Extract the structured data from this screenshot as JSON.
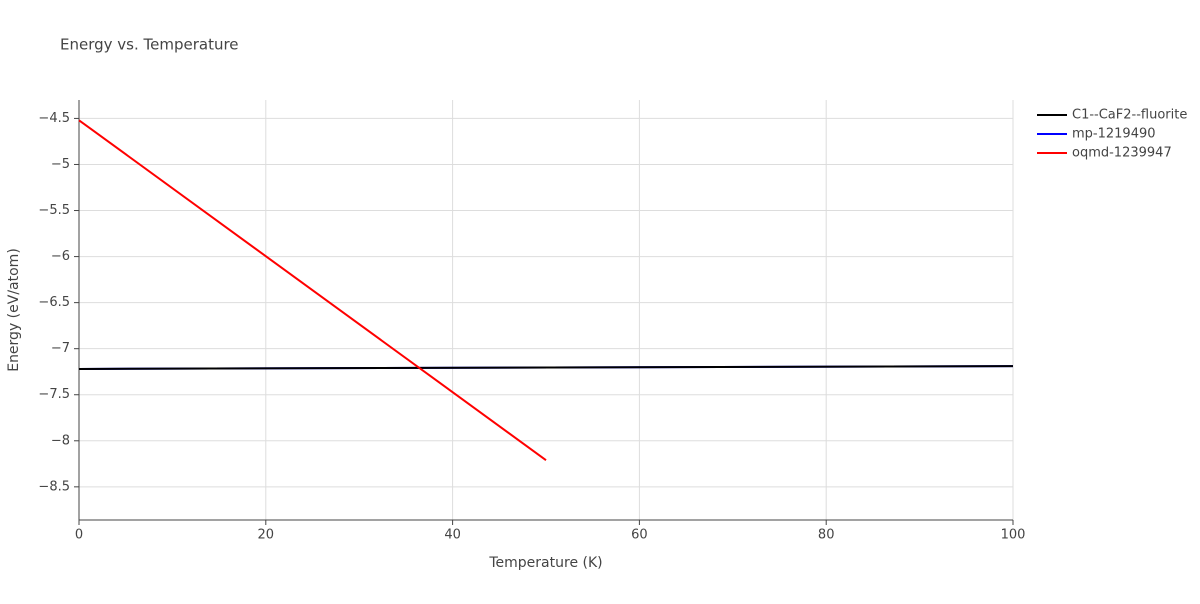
{
  "chart_data": {
    "type": "line",
    "title": "Energy vs. Temperature",
    "x_label": "Temperature (K)",
    "y_label": "Energy (eV/atom)",
    "xlim": [
      0,
      100
    ],
    "xticks": [
      0,
      20,
      40,
      60,
      80,
      100
    ],
    "ylim": [
      -8.86,
      -4.3
    ],
    "yticks": [
      {
        "value": -4.5,
        "label": "−4.5"
      },
      {
        "value": -5,
        "label": "−5"
      },
      {
        "value": -5.5,
        "label": "−5.5"
      },
      {
        "value": -6,
        "label": "−6"
      },
      {
        "value": -6.5,
        "label": "−6.5"
      },
      {
        "value": -7,
        "label": "−7"
      },
      {
        "value": -7.5,
        "label": "−7.5"
      },
      {
        "value": -8,
        "label": "−8"
      },
      {
        "value": -8.5,
        "label": "−8.5"
      }
    ],
    "grid": true,
    "legend": "right",
    "series": [
      {
        "name": "C1--CaF2--fluorite",
        "color": "#000000",
        "x": [
          0,
          100
        ],
        "values": [
          -7.22,
          -7.19
        ]
      },
      {
        "name": "mp-1219490",
        "color": "#0000ff",
        "x": [
          0,
          100
        ],
        "values": [
          -7.22,
          -7.19
        ]
      },
      {
        "name": "oqmd-1239947",
        "color": "#ff0000",
        "x": [
          0,
          50
        ],
        "values": [
          -4.52,
          -8.21
        ]
      }
    ]
  }
}
